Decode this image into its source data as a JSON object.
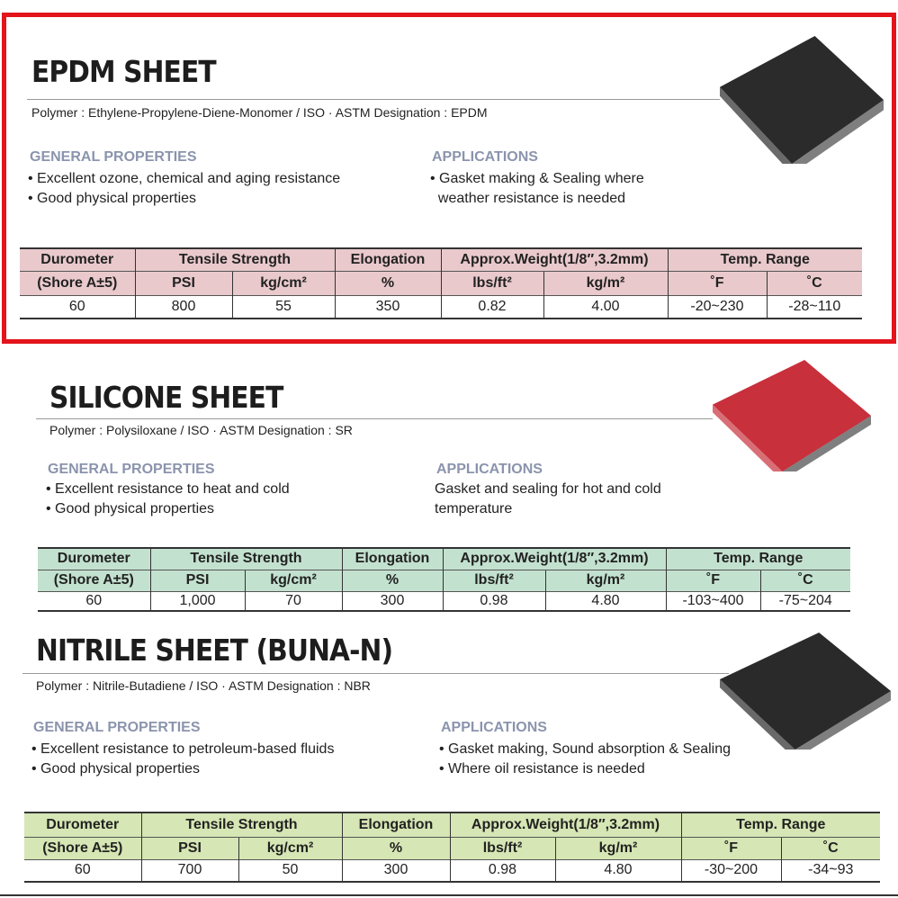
{
  "sections": [
    {
      "title": "EPDM SHEET",
      "polymer": "Polymer : Ethylene-Propylene-Diene-Monomer   /  ISO · ASTM Designation : EPDM",
      "general_heading": "GENERAL PROPERTIES",
      "general": [
        "• Excellent ozone, chemical and aging resistance",
        "• Good physical properties"
      ],
      "applications_heading": "APPLICATIONS",
      "applications": [
        "• Gasket making & Sealing where",
        "  weather resistance is needed"
      ],
      "header_color": "#e9c9cc",
      "sheet_color": "#2b2b2b",
      "highlighted": true,
      "table": {
        "h1": [
          "Durometer",
          "Tensile Strength",
          "Elongation",
          "Approx.Weight(1/8″,3.2mm)",
          "Temp. Range"
        ],
        "h2": [
          "(Shore A±5)",
          "PSI",
          "kg/cm²",
          "%",
          "lbs/ft²",
          "kg/m²",
          "˚F",
          "˚C"
        ],
        "row": [
          "60",
          "800",
          "55",
          "350",
          "0.82",
          "4.00",
          "-20~230",
          "-28~110"
        ]
      }
    },
    {
      "title": "SILICONE SHEET",
      "polymer": "Polymer : Polysiloxane  /  ISO · ASTM Designation : SR",
      "general_heading": "GENERAL PROPERTIES",
      "general": [
        "• Excellent resistance to heat and cold",
        "• Good physical properties"
      ],
      "applications_heading": "APPLICATIONS",
      "applications": [
        "Gasket and sealing for hot and cold",
        "temperature"
      ],
      "header_color": "#c3e1cf",
      "sheet_color": "#c8303c",
      "highlighted": false,
      "table": {
        "h1": [
          "Durometer",
          "Tensile Strength",
          "Elongation",
          "Approx.Weight(1/8″,3.2mm)",
          "Temp. Range"
        ],
        "h2": [
          "(Shore A±5)",
          "PSI",
          "kg/cm²",
          "%",
          "lbs/ft²",
          "kg/m²",
          "˚F",
          "˚C"
        ],
        "row": [
          "60",
          "1,000",
          "70",
          "300",
          "0.98",
          "4.80",
          "-103~400",
          "-75~204"
        ]
      }
    },
    {
      "title": "NITRILE SHEET (BUNA-N)",
      "polymer": "Polymer : Nitrile-Butadiene /  ISO · ASTM Designation : NBR",
      "general_heading": "GENERAL PROPERTIES",
      "general": [
        "• Excellent resistance to petroleum-based fluids",
        "• Good physical properties"
      ],
      "applications_heading": "APPLICATIONS",
      "applications": [
        "• Gasket making, Sound absorption & Sealing",
        "• Where oil resistance is needed"
      ],
      "header_color": "#d6e6b4",
      "sheet_color": "#2a2a2a",
      "highlighted": false,
      "table": {
        "h1": [
          "Durometer",
          "Tensile Strength",
          "Elongation",
          "Approx.Weight(1/8″,3.2mm)",
          "Temp. Range"
        ],
        "h2": [
          "(Shore A±5)",
          "PSI",
          "kg/cm²",
          "%",
          "lbs/ft²",
          "kg/m²",
          "˚F",
          "˚C"
        ],
        "row": [
          "60",
          "700",
          "50",
          "300",
          "0.98",
          "4.80",
          "-30~200",
          "-34~93"
        ]
      }
    }
  ]
}
